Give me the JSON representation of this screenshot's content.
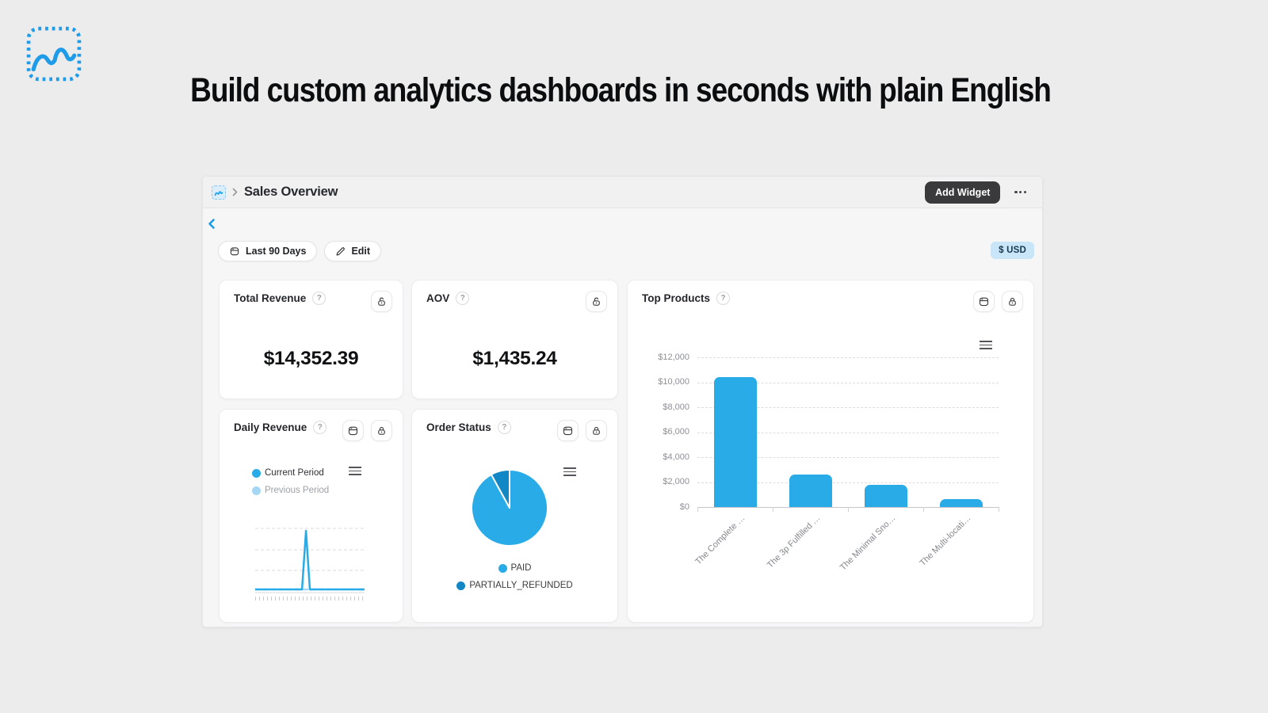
{
  "page": {
    "headline": "Build custom analytics dashboards in seconds with plain English"
  },
  "dashboard": {
    "title": "Sales Overview",
    "add_widget_label": "Add Widget",
    "icons": [
      "wave-logo",
      "breadcrumb-chevron",
      "back-chevron",
      "calendar-icon",
      "pencil-icon",
      "lock-icon",
      "unlock-icon",
      "hamburger-menu-icon",
      "more-options-icon",
      "help-icon"
    ],
    "filters": {
      "date_range": "Last 90 Days",
      "edit_label": "Edit",
      "currency": "$ USD"
    },
    "widgets": {
      "total_revenue": {
        "title": "Total Revenue",
        "help": "?",
        "value": "$14,352.39"
      },
      "aov": {
        "title": "AOV",
        "help": "?",
        "value": "$1,435.24"
      },
      "top_products": {
        "title": "Top Products",
        "help": "?"
      },
      "daily_revenue": {
        "title": "Daily Revenue",
        "help": "?"
      },
      "order_status": {
        "title": "Order Status",
        "help": "?"
      }
    },
    "colors": {
      "accent_blue": "#29ABE8",
      "dark_blue": "#1287C6",
      "light_blue": "#A5D7F5",
      "currency_badge_bg": "#C9E6F8",
      "add_widget_bg": "#3A393B",
      "page_bg": "#ECECEC"
    }
  },
  "chart_data": [
    {
      "id": "top_products",
      "type": "bar",
      "title": "Top Products",
      "categories": [
        "The Complete …",
        "The 3p Fulfilled …",
        "The Minimal Sno…",
        "The Multi-locati…"
      ],
      "values": [
        10400,
        2600,
        1750,
        650
      ],
      "xlabel": "",
      "ylabel": "",
      "ylim": [
        0,
        12000
      ],
      "yticks": [
        "$12,000",
        "$10,000",
        "$8,000",
        "$6,000",
        "$4,000",
        "$2,000",
        "$0"
      ],
      "grid": true,
      "bar_color": "#29ABE8",
      "x_label_rotation": -45
    },
    {
      "id": "daily_revenue",
      "type": "line",
      "title": "Daily Revenue",
      "legend_position": "top-left",
      "grid": true,
      "series": [
        {
          "name": "Current Period",
          "color": "#29ABE8",
          "values_rel": [
            0,
            0,
            0,
            0,
            0,
            0,
            0,
            0,
            0,
            0,
            0,
            0,
            0,
            1,
            0,
            0,
            0,
            0,
            0,
            0,
            0,
            0,
            0,
            0,
            0,
            0,
            0,
            0,
            0
          ]
        },
        {
          "name": "Previous Period",
          "color": "#A5D7F5",
          "dashed": true,
          "values_rel": [
            0,
            0,
            0,
            0,
            0,
            0,
            0,
            0,
            0,
            0,
            0,
            0,
            0,
            0,
            0,
            0,
            0,
            0,
            0,
            0,
            0,
            0,
            0,
            0,
            0,
            0,
            0,
            0,
            0
          ]
        }
      ]
    },
    {
      "id": "order_status",
      "type": "pie",
      "title": "Order Status",
      "labels": [
        "PAID",
        "PARTIALLY_REFUNDED"
      ],
      "values": [
        92,
        8
      ],
      "colors": [
        "#29ABE8",
        "#1287C6"
      ],
      "legend_position": "bottom"
    }
  ]
}
